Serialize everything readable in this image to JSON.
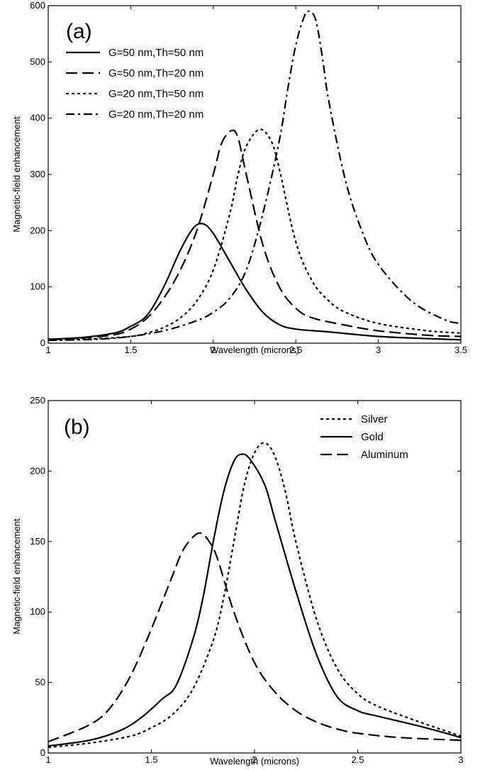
{
  "chart_data": [
    {
      "panel": "(a)",
      "type": "line",
      "xlabel": "Wavelength (microns)",
      "ylabel": "Magnetic-field enhancement",
      "xlim": [
        1,
        3.5
      ],
      "ylim": [
        0,
        600
      ],
      "xticks": [
        "1",
        "1.5",
        "2",
        "2.5",
        "3",
        "3.5"
      ],
      "xtick_values": [
        1,
        1.5,
        2,
        2.5,
        3,
        3.5
      ],
      "yticks": [
        "0",
        "100",
        "200",
        "300",
        "400",
        "500",
        "600"
      ],
      "ytick_values": [
        0,
        100,
        200,
        300,
        400,
        500,
        600
      ],
      "grid": false,
      "legend_position": "top-left",
      "series": [
        {
          "name": "G=50 nm,Th=50 nm",
          "style": "solid",
          "x": [
            1.0,
            1.2,
            1.4,
            1.5,
            1.6,
            1.7,
            1.8,
            1.88,
            1.94,
            2.0,
            2.1,
            2.2,
            2.3,
            2.4,
            2.5,
            2.7,
            3.0,
            3.3,
            3.5
          ],
          "y": [
            7,
            10,
            18,
            30,
            50,
            100,
            165,
            205,
            212,
            195,
            145,
            95,
            55,
            33,
            25,
            20,
            12,
            8,
            6
          ]
        },
        {
          "name": "G=50 nm,Th=20 nm",
          "style": "dashed",
          "x": [
            1.0,
            1.2,
            1.4,
            1.5,
            1.6,
            1.7,
            1.8,
            1.9,
            2.0,
            2.05,
            2.11,
            2.15,
            2.2,
            2.3,
            2.4,
            2.5,
            2.6,
            2.8,
            3.0,
            3.3,
            3.5
          ],
          "y": [
            6,
            9,
            15,
            25,
            45,
            80,
            130,
            200,
            300,
            355,
            378,
            365,
            300,
            175,
            100,
            62,
            45,
            32,
            22,
            14,
            12
          ]
        },
        {
          "name": "G=20 nm,Th=50 nm",
          "style": "dotted",
          "x": [
            1.0,
            1.3,
            1.5,
            1.6,
            1.7,
            1.8,
            1.9,
            2.0,
            2.1,
            2.15,
            2.2,
            2.28,
            2.35,
            2.4,
            2.5,
            2.6,
            2.7,
            2.8,
            3.0,
            3.3,
            3.5
          ],
          "y": [
            5,
            8,
            12,
            18,
            28,
            45,
            75,
            130,
            230,
            300,
            350,
            380,
            360,
            310,
            180,
            110,
            75,
            55,
            35,
            22,
            18
          ]
        },
        {
          "name": "G=20 nm,Th=20 nm",
          "style": "dashdot",
          "x": [
            1.0,
            1.3,
            1.5,
            1.7,
            1.9,
            2.0,
            2.1,
            2.2,
            2.3,
            2.4,
            2.45,
            2.5,
            2.55,
            2.58,
            2.62,
            2.66,
            2.7,
            2.8,
            2.9,
            3.0,
            3.2,
            3.4,
            3.5
          ],
          "y": [
            5,
            7,
            12,
            22,
            40,
            55,
            80,
            130,
            230,
            360,
            450,
            530,
            580,
            590,
            575,
            510,
            430,
            290,
            200,
            140,
            75,
            42,
            35
          ]
        }
      ]
    },
    {
      "panel": "(b)",
      "type": "line",
      "xlabel": "Wavelength (microns)",
      "ylabel": "Magnetic-field enhancement",
      "xlim": [
        1,
        3
      ],
      "ylim": [
        0,
        250
      ],
      "xticks": [
        "1",
        "1.5",
        "2",
        "2.5",
        "3"
      ],
      "xtick_values": [
        1,
        1.5,
        2,
        2.5,
        3
      ],
      "yticks": [
        "0",
        "50",
        "100",
        "150",
        "200",
        "250"
      ],
      "ytick_values": [
        0,
        50,
        100,
        150,
        200,
        250
      ],
      "grid": false,
      "legend_position": "top-right",
      "series": [
        {
          "name": "Silver",
          "style": "dotted",
          "x": [
            1.0,
            1.2,
            1.4,
            1.5,
            1.6,
            1.7,
            1.8,
            1.85,
            1.9,
            1.95,
            2.0,
            2.05,
            2.1,
            2.15,
            2.2,
            2.3,
            2.4,
            2.5,
            2.6,
            2.8,
            3.0
          ],
          "y": [
            4,
            7,
            12,
            18,
            27,
            45,
            80,
            110,
            150,
            190,
            213,
            220,
            210,
            185,
            150,
            95,
            60,
            42,
            33,
            22,
            12
          ]
        },
        {
          "name": "Gold",
          "style": "solid",
          "x": [
            1.0,
            1.2,
            1.35,
            1.45,
            1.55,
            1.62,
            1.7,
            1.75,
            1.8,
            1.85,
            1.9,
            1.94,
            1.98,
            2.05,
            2.1,
            2.2,
            2.3,
            2.4,
            2.5,
            2.6,
            2.8,
            3.0
          ],
          "y": [
            5,
            9,
            16,
            25,
            38,
            48,
            80,
            110,
            150,
            185,
            207,
            212,
            208,
            190,
            165,
            115,
            70,
            40,
            30,
            26,
            19,
            11
          ]
        },
        {
          "name": "Aluminum",
          "style": "dashed",
          "x": [
            1.0,
            1.2,
            1.3,
            1.4,
            1.5,
            1.6,
            1.65,
            1.7,
            1.74,
            1.78,
            1.82,
            1.9,
            2.0,
            2.1,
            2.2,
            2.3,
            2.4,
            2.5,
            2.7,
            3.0
          ],
          "y": [
            8,
            20,
            32,
            55,
            88,
            125,
            143,
            153,
            156,
            150,
            138,
            100,
            64,
            43,
            30,
            22,
            17,
            14,
            11,
            9
          ]
        }
      ]
    }
  ]
}
